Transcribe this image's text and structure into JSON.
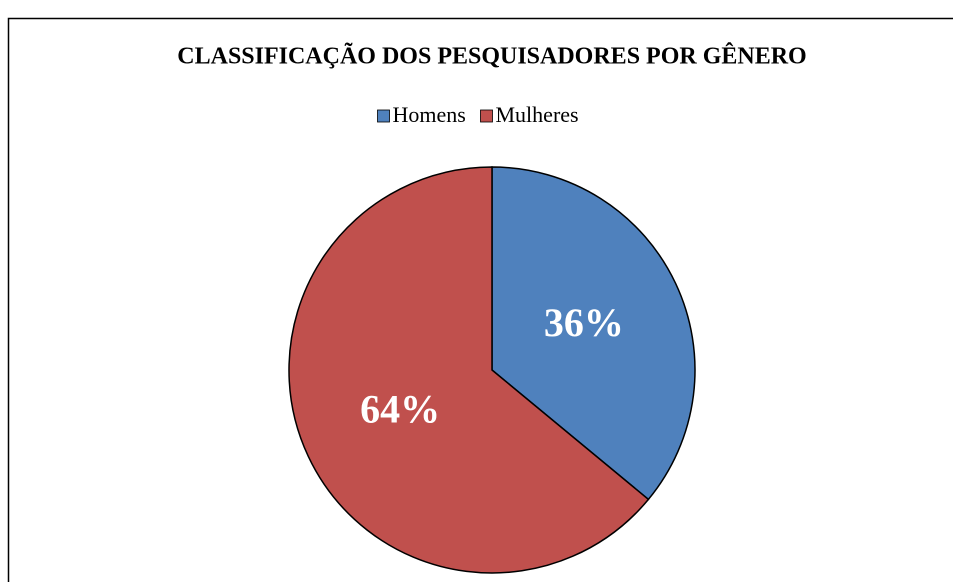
{
  "chart_data": {
    "type": "pie",
    "title": "CLASSIFICAÇÃO DOS PESQUISADORES POR GÊNERO",
    "categories": [
      "Homens",
      "Mulheres"
    ],
    "values": [
      36,
      64
    ],
    "value_labels": [
      "36%",
      "64%"
    ],
    "colors": [
      "#4f81bd",
      "#c0504d"
    ],
    "legend": "top"
  }
}
